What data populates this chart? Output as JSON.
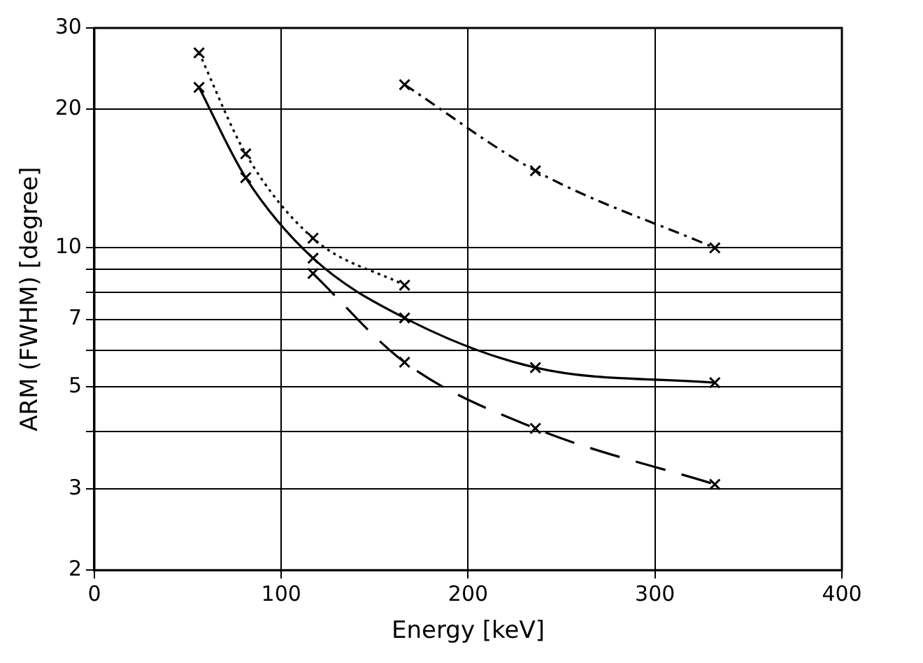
{
  "chart_data": {
    "type": "line",
    "xlabel": "Energy [keV]",
    "ylabel": "ARM (FWHM) [degree]",
    "log": "y",
    "grid": true,
    "legend": false,
    "marker": "cross",
    "xlim": [
      0,
      400
    ],
    "xticks": [
      0,
      100,
      200,
      300,
      400
    ],
    "ylim": [
      2,
      30
    ],
    "yticks": [
      2,
      3,
      {
        "value": 4,
        "label": null
      },
      5,
      {
        "value": 6,
        "label": null
      },
      7,
      {
        "value": 8,
        "label": null
      },
      {
        "value": 9,
        "label": null
      },
      10,
      20,
      30
    ],
    "series": [
      {
        "color": "#000000",
        "line_style": "dotted",
        "x": [
          56,
          81,
          117,
          166
        ],
        "values": [
          26.5,
          16,
          10.5,
          8.3
        ]
      },
      {
        "color": "#000000",
        "line_style": "solid",
        "x": [
          56,
          81,
          117,
          166,
          236,
          332
        ],
        "values": [
          22.3,
          14.2,
          9.5,
          7.05,
          5.5,
          5.1
        ]
      },
      {
        "color": "#000000",
        "line_style": "dashed",
        "x": [
          117,
          166,
          236,
          332
        ],
        "values": [
          8.8,
          5.65,
          4.06,
          3.07
        ]
      },
      {
        "color": "#000000",
        "line_style": "dashdot",
        "x": [
          166,
          236,
          332
        ],
        "values": [
          22.6,
          14.7,
          10
        ]
      }
    ]
  }
}
